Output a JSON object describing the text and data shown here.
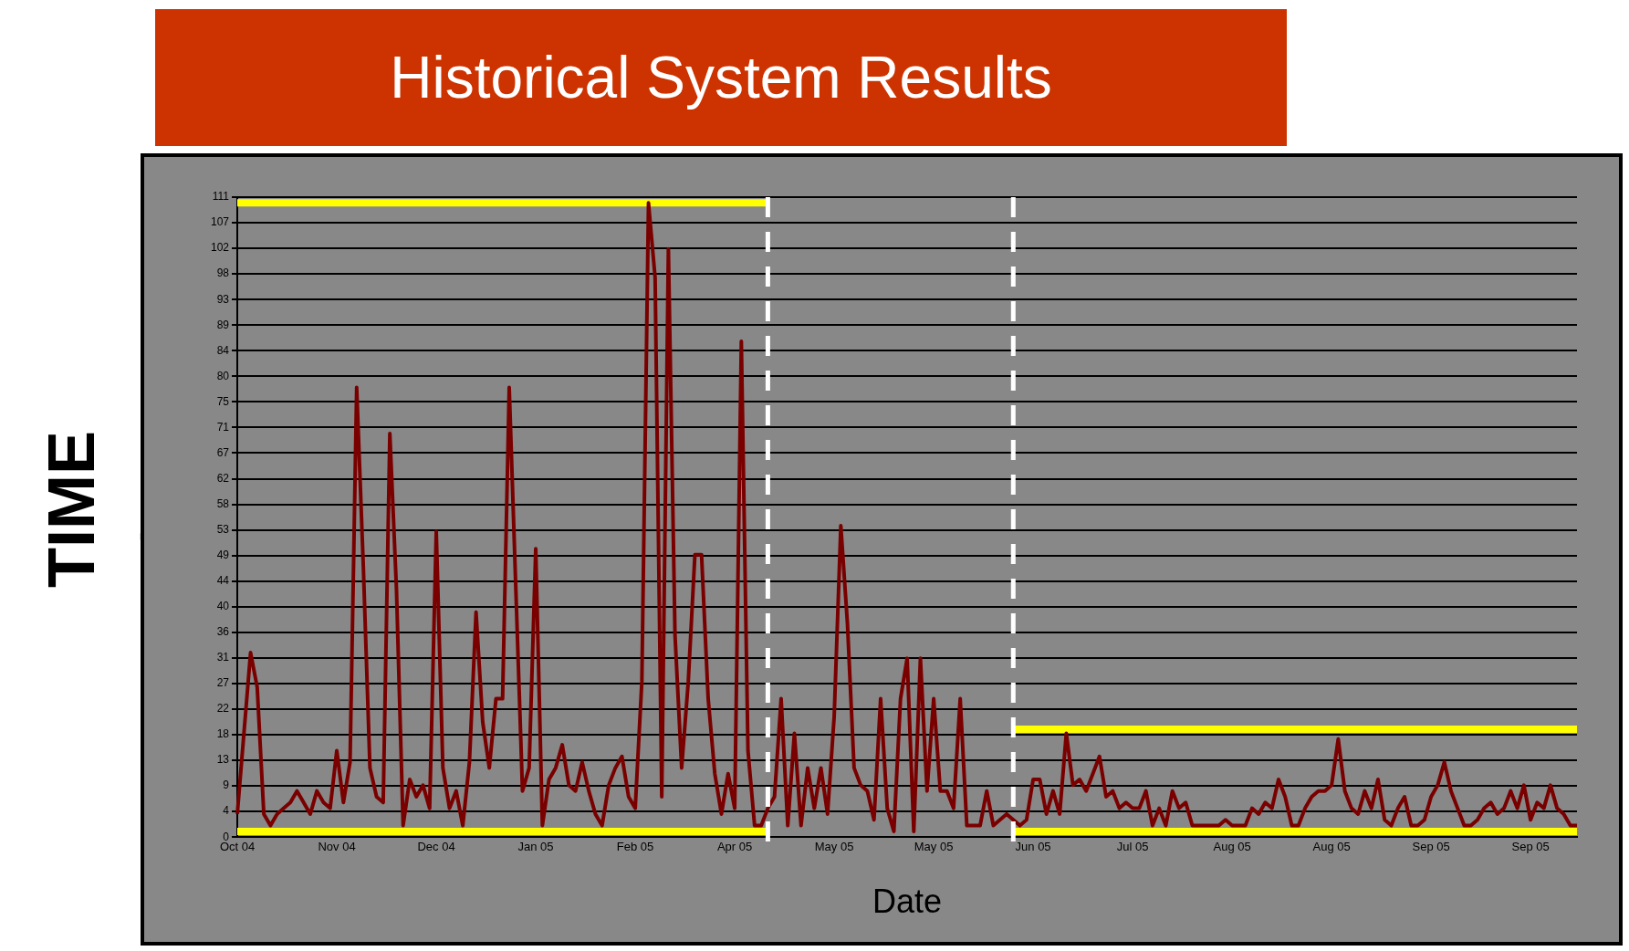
{
  "chart_data": {
    "type": "line",
    "title": "Historical System Results",
    "xlabel": "Date",
    "ylabel": "TIME",
    "categories": [
      "Oct 04",
      null,
      null,
      null,
      null,
      null,
      null,
      null,
      null,
      null,
      null,
      null,
      null,
      null,
      null,
      "Nov 04",
      null,
      null,
      null,
      null,
      null,
      null,
      null,
      null,
      null,
      null,
      null,
      null,
      null,
      null,
      "Dec 04",
      null,
      null,
      null,
      null,
      null,
      null,
      null,
      null,
      null,
      null,
      null,
      null,
      null,
      null,
      "Jan 05",
      null,
      null,
      null,
      null,
      null,
      null,
      null,
      null,
      null,
      null,
      null,
      null,
      null,
      null,
      "Feb 05",
      null,
      null,
      null,
      null,
      null,
      null,
      null,
      null,
      null,
      null,
      null,
      null,
      null,
      null,
      "Apr 05",
      null,
      null,
      null,
      null,
      null,
      null,
      null,
      null,
      null,
      null,
      null,
      null,
      null,
      null,
      "May 05",
      null,
      null,
      null,
      null,
      null,
      null,
      null,
      null,
      null,
      null,
      null,
      null,
      null,
      null,
      "May 05",
      null,
      null,
      null,
      null,
      null,
      null,
      null,
      null,
      null,
      null,
      null,
      null,
      null,
      null,
      "Jun 05",
      null,
      null,
      null,
      null,
      null,
      null,
      null,
      null,
      null,
      null,
      null,
      null,
      null,
      null,
      "Jul 05",
      null,
      null,
      null,
      null,
      null,
      null,
      null,
      null,
      null,
      null,
      null,
      null,
      null,
      null,
      "Aug 05",
      null,
      null,
      null,
      null,
      null,
      null,
      null,
      null,
      null,
      null,
      null,
      null,
      null,
      null,
      "Aug 05",
      null,
      null,
      null,
      null,
      null,
      null,
      null,
      null,
      null,
      null,
      null,
      null,
      null,
      null,
      "Sep 05",
      null,
      null,
      null,
      null,
      null,
      null,
      null,
      null,
      null,
      null,
      null,
      null,
      null,
      null,
      "Sep 05",
      null,
      null,
      null,
      null,
      null,
      null,
      null
    ],
    "ylim": [
      0,
      111
    ],
    "yticks": [
      0,
      {
        "value": 4.44,
        "label": "4"
      },
      {
        "value": 8.88,
        "label": "9"
      },
      {
        "value": 13.32,
        "label": "13"
      },
      {
        "value": 17.76,
        "label": "18"
      },
      {
        "value": 22.2,
        "label": "22"
      },
      {
        "value": 26.64,
        "label": "27"
      },
      {
        "value": 31.08,
        "label": "31"
      },
      {
        "value": 35.52,
        "label": "36"
      },
      {
        "value": 39.96,
        "label": "40"
      },
      {
        "value": 44.4,
        "label": "44"
      },
      {
        "value": 48.84,
        "label": "49"
      },
      {
        "value": 53.28,
        "label": "53"
      },
      {
        "value": 57.72,
        "label": "58"
      },
      {
        "value": 62.16,
        "label": "62"
      },
      {
        "value": 66.6,
        "label": "67"
      },
      {
        "value": 71.04,
        "label": "71"
      },
      {
        "value": 75.48,
        "label": "75"
      },
      {
        "value": 79.92,
        "label": "80"
      },
      {
        "value": 84.36,
        "label": "84"
      },
      {
        "value": 88.8,
        "label": "89"
      },
      {
        "value": 93.24,
        "label": "93"
      },
      {
        "value": 97.68,
        "label": "98"
      },
      {
        "value": 102.12,
        "label": "102"
      },
      {
        "value": 106.56,
        "label": "107"
      },
      111
    ],
    "grid": "y",
    "legend": false,
    "marker": "none",
    "line_style": "solid",
    "series": [
      {
        "color": "#7a0000",
        "values": [
          4,
          18,
          32,
          26,
          4,
          2,
          4,
          5,
          6,
          8,
          6,
          4,
          8,
          6,
          5,
          15,
          6,
          13,
          78,
          47,
          12,
          7,
          6,
          70,
          43,
          2,
          10,
          7,
          9,
          5,
          53,
          12,
          5,
          8,
          2,
          13,
          39,
          20,
          12,
          24,
          24,
          78,
          43,
          8,
          12,
          50,
          2,
          10,
          12,
          16,
          9,
          8,
          13,
          8,
          4,
          2,
          9,
          12,
          14,
          7,
          5,
          27,
          110,
          97,
          7,
          102,
          35,
          12,
          27,
          49,
          49,
          24,
          11,
          4,
          11,
          5,
          86,
          15,
          2,
          2,
          5,
          7,
          24,
          2,
          18,
          2,
          12,
          5,
          12,
          4,
          21,
          54,
          37,
          12,
          9,
          8,
          3,
          24,
          5,
          1,
          24,
          31,
          1,
          31,
          8,
          24,
          8,
          8,
          5,
          24,
          2,
          2,
          2,
          8,
          2,
          3,
          4,
          3,
          2,
          3,
          10,
          10,
          4,
          8,
          4,
          18,
          9,
          10,
          8,
          11,
          14,
          7,
          8,
          5,
          6,
          5,
          5,
          8,
          2,
          5,
          2,
          8,
          5,
          6,
          2,
          2,
          2,
          2,
          2,
          3,
          2,
          2,
          2,
          5,
          4,
          6,
          5,
          10,
          7,
          2,
          2,
          5,
          7,
          8,
          8,
          9,
          17,
          8,
          5,
          4,
          8,
          5,
          10,
          3,
          2,
          5,
          7,
          2,
          2,
          3,
          7,
          9,
          13,
          8,
          5,
          2,
          2,
          3,
          5,
          6,
          4,
          5,
          8,
          5,
          9,
          3,
          6,
          5,
          9,
          5,
          4,
          2,
          2
        ]
      },
      {
        "color": "#ffff00",
        "values": [
          110,
          110,
          110,
          110,
          110,
          110,
          110,
          110,
          110,
          110,
          110,
          110,
          110,
          110,
          110,
          110,
          110,
          110,
          110,
          110,
          110,
          110,
          110,
          110,
          110,
          110,
          110,
          110,
          110,
          110,
          110,
          110,
          110,
          110,
          110,
          110,
          110,
          110,
          110,
          110,
          110,
          110,
          110,
          110,
          110,
          110,
          110,
          110,
          110,
          110,
          110,
          110,
          110,
          110,
          110,
          110,
          110,
          110,
          110,
          110,
          110,
          110,
          110,
          110,
          110,
          110,
          110,
          110,
          110,
          110,
          110,
          110,
          110,
          110,
          110,
          110,
          110,
          110,
          110,
          110,
          110,
          null,
          null,
          null,
          null,
          null,
          null,
          null,
          null,
          null,
          null,
          null,
          null,
          null,
          null,
          null,
          null,
          null,
          null,
          null,
          null,
          null,
          null,
          null,
          null,
          null,
          null,
          null,
          null,
          null,
          null,
          null,
          null,
          null,
          null,
          null,
          null,
          18.7,
          18.7,
          18.7,
          18.7,
          18.7,
          18.7,
          18.7,
          18.7,
          18.7,
          18.7,
          18.7,
          18.7,
          18.7,
          18.7,
          18.7,
          18.7,
          18.7,
          18.7,
          18.7,
          18.7,
          18.7,
          18.7,
          18.7,
          18.7,
          18.7,
          18.7,
          18.7,
          18.7,
          18.7,
          18.7,
          18.7,
          18.7,
          18.7,
          18.7,
          18.7,
          18.7,
          18.7,
          18.7,
          18.7,
          18.7,
          18.7,
          18.7,
          18.7,
          18.7,
          18.7,
          18.7,
          18.7,
          18.7,
          18.7,
          18.7,
          18.7,
          18.7,
          18.7,
          18.7,
          18.7,
          18.7,
          18.7,
          18.7,
          18.7,
          18.7,
          18.7,
          18.7,
          18.7,
          18.7,
          18.7,
          18.7,
          18.7,
          18.7,
          18.7,
          18.7,
          18.7,
          18.7,
          18.7,
          18.7,
          18.7,
          18.7,
          18.7,
          18.7,
          18.7,
          18.7,
          18.7,
          18.7,
          18.7,
          18.7,
          18.7,
          18.7
        ]
      },
      {
        "color": "#ffff00",
        "values": [
          1,
          1,
          1,
          1,
          1,
          1,
          1,
          1,
          1,
          1,
          1,
          1,
          1,
          1,
          1,
          1,
          1,
          1,
          1,
          1,
          1,
          1,
          1,
          1,
          1,
          1,
          1,
          1,
          1,
          1,
          1,
          1,
          1,
          1,
          1,
          1,
          1,
          1,
          1,
          1,
          1,
          1,
          1,
          1,
          1,
          1,
          1,
          1,
          1,
          1,
          1,
          1,
          1,
          1,
          1,
          1,
          1,
          1,
          1,
          1,
          1,
          1,
          1,
          1,
          1,
          1,
          1,
          1,
          1,
          1,
          1,
          1,
          1,
          1,
          1,
          1,
          1,
          1,
          1,
          1,
          1,
          null,
          null,
          null,
          null,
          null,
          null,
          null,
          null,
          null,
          null,
          null,
          null,
          null,
          null,
          null,
          null,
          null,
          null,
          null,
          null,
          null,
          null,
          null,
          null,
          null,
          null,
          null,
          null,
          null,
          null,
          null,
          null,
          null,
          null,
          null,
          null,
          1,
          1,
          1,
          1,
          1,
          1,
          1,
          1,
          1,
          1,
          1,
          1,
          1,
          1,
          1,
          1,
          1,
          1,
          1,
          1,
          1,
          1,
          1,
          1,
          1,
          1,
          1,
          1,
          1,
          1,
          1,
          1,
          1,
          1,
          1,
          1,
          1,
          1,
          1,
          1,
          1,
          1,
          1,
          1,
          1,
          1,
          1,
          1,
          1,
          1,
          1,
          1,
          1,
          1,
          1,
          1,
          1,
          1,
          1,
          1,
          1,
          1,
          1,
          1,
          1,
          1,
          1,
          1,
          1,
          1,
          1,
          1,
          1,
          1,
          1,
          1,
          1,
          1,
          1,
          1,
          1,
          1,
          1,
          1,
          1,
          1
        ]
      }
    ]
  }
}
